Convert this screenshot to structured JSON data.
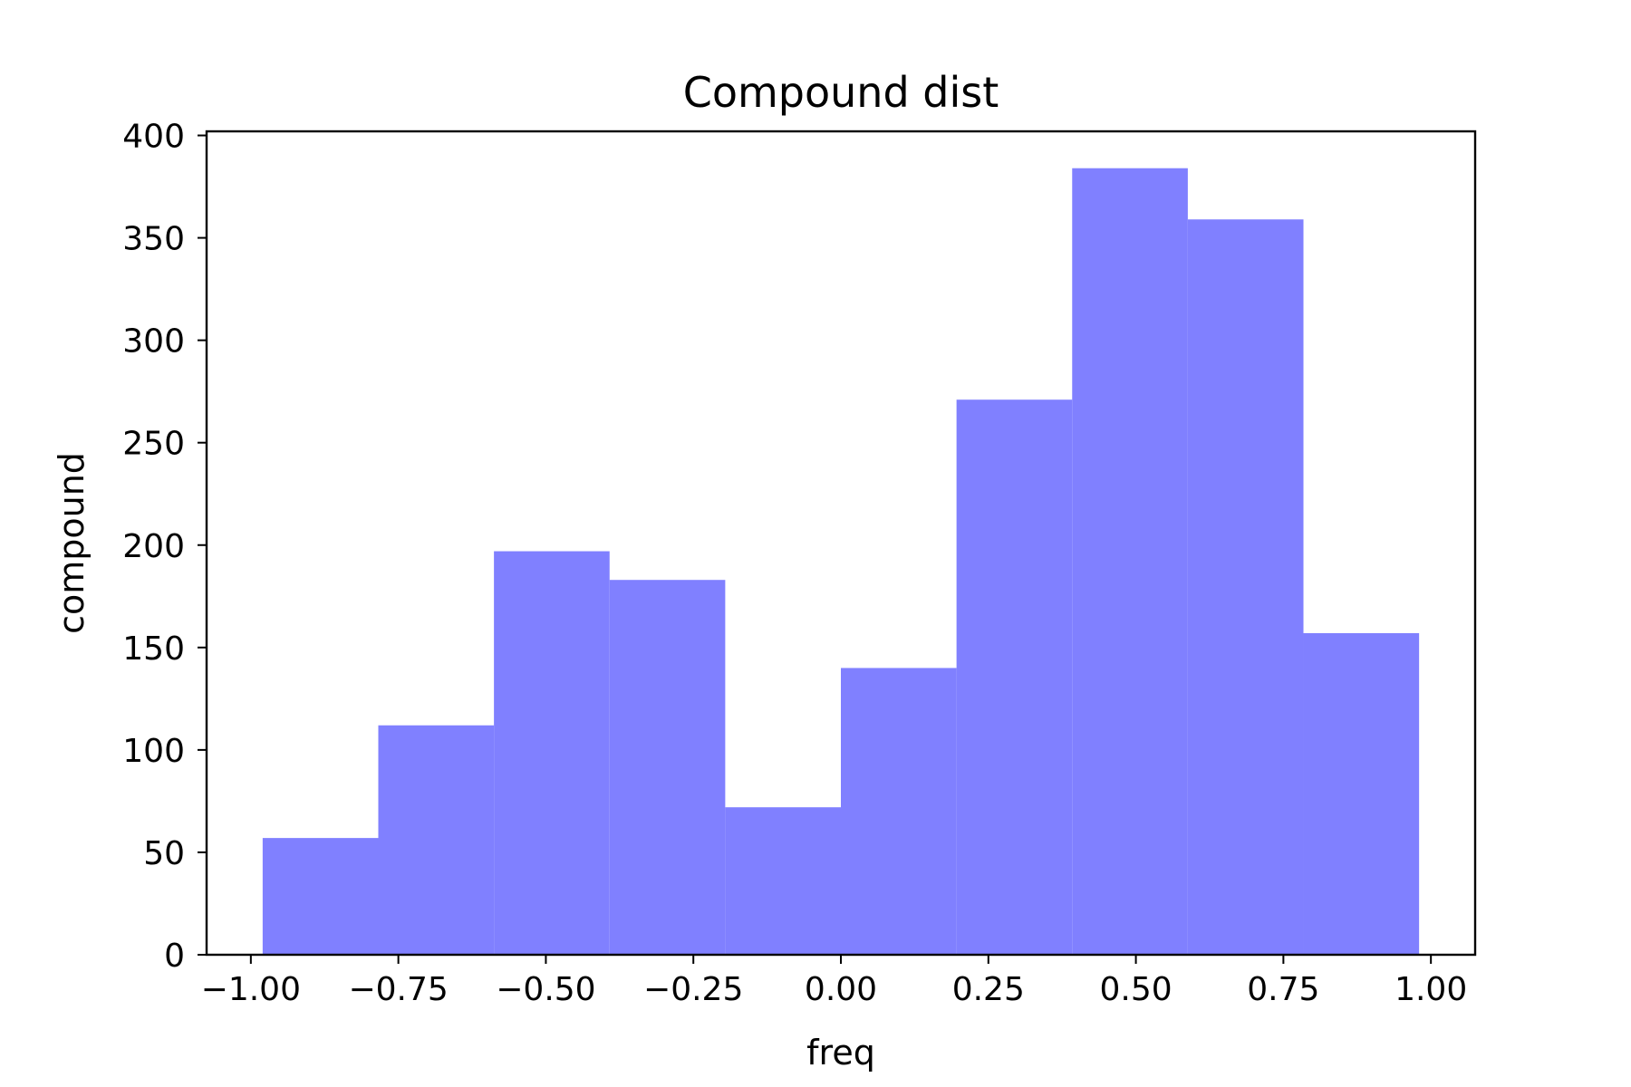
{
  "chart_data": {
    "type": "bar",
    "title": "Compound dist",
    "xlabel": "freq",
    "ylabel": "compound",
    "xlim": [
      -1.075,
      1.075
    ],
    "ylim": [
      0,
      402
    ],
    "xticks": [
      -1.0,
      -0.75,
      -0.5,
      -0.25,
      0.0,
      0.25,
      0.5,
      0.75,
      1.0
    ],
    "xtick_labels": [
      "−1.00",
      "−0.75",
      "−0.50",
      "−0.25",
      "0.00",
      "0.25",
      "0.50",
      "0.75",
      "1.00"
    ],
    "yticks": [
      0,
      50,
      100,
      150,
      200,
      250,
      300,
      350,
      400
    ],
    "ytick_labels": [
      "0",
      "50",
      "100",
      "150",
      "200",
      "250",
      "300",
      "350",
      "400"
    ],
    "bin_edges": [
      -0.98,
      -0.784,
      -0.588,
      -0.392,
      -0.196,
      0.0,
      0.196,
      0.392,
      0.588,
      0.784,
      0.98
    ],
    "values": [
      57,
      112,
      197,
      183,
      72,
      140,
      271,
      384,
      359,
      157
    ],
    "bar_color": "#8080ff",
    "grid": false,
    "legend": false
  }
}
